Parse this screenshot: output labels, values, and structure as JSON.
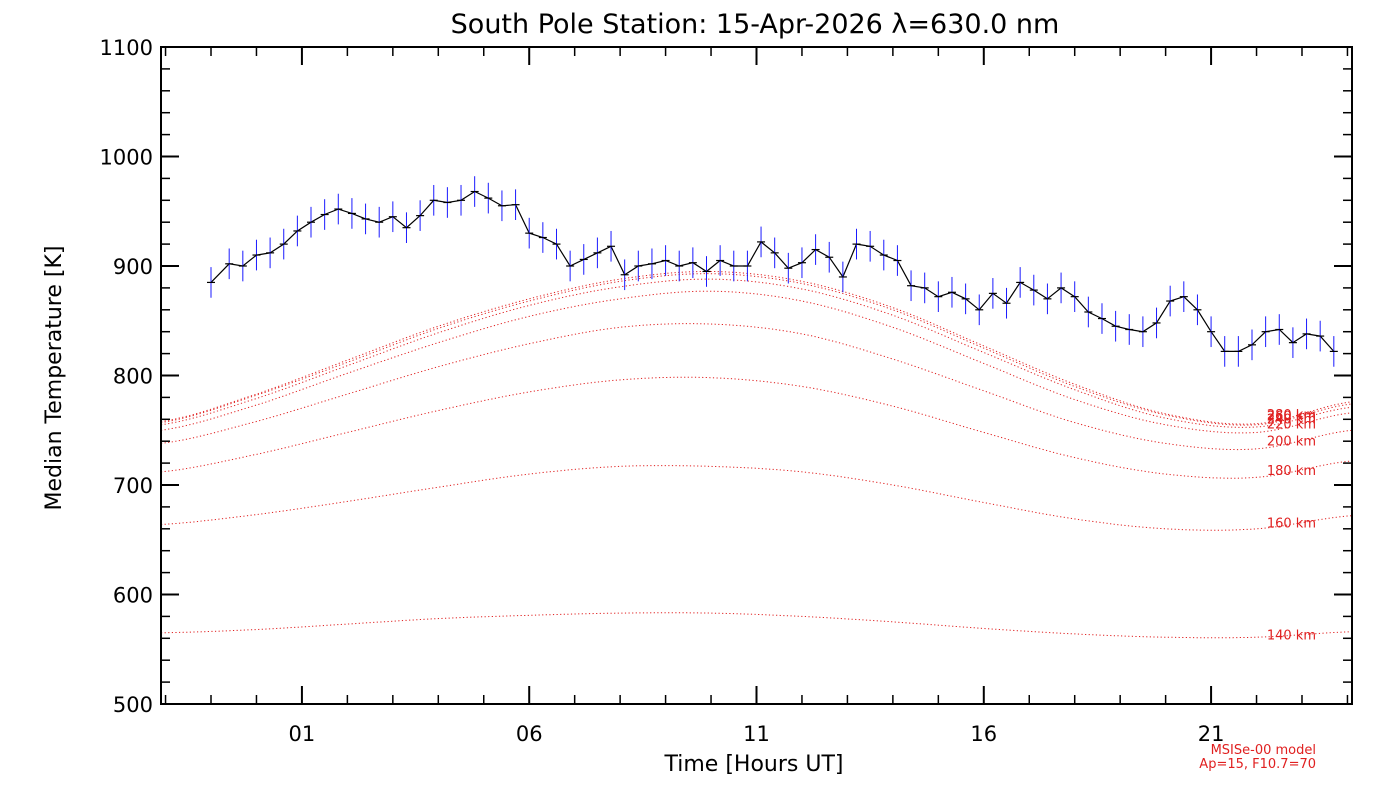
{
  "chart_data": {
    "type": "line",
    "title": "South Pole Station: 15-Apr-2026 λ=630.0 nm",
    "xlabel": "Time [Hours UT]",
    "ylabel": "Median Temperature [K]",
    "xlim": [
      -2.1,
      24.1
    ],
    "ylim": [
      500,
      1100
    ],
    "xticks": [
      {
        "value": 1,
        "label": "01"
      },
      {
        "value": 6,
        "label": "06"
      },
      {
        "value": 11,
        "label": "11"
      },
      {
        "value": 16,
        "label": "16"
      },
      {
        "value": 21,
        "label": "21"
      }
    ],
    "yticks": [
      500,
      600,
      700,
      800,
      900,
      1000,
      1100
    ],
    "grid": false,
    "colors": {
      "observed": "#000000",
      "errorbar": "#1a1aff",
      "model": "#e02020"
    },
    "observed": {
      "name": "Median temperature",
      "x": [
        -1.0,
        -0.6,
        -0.3,
        0.0,
        0.3,
        0.6,
        0.9,
        1.2,
        1.5,
        1.8,
        2.1,
        2.4,
        2.7,
        3.0,
        3.3,
        3.6,
        3.9,
        4.2,
        4.5,
        4.8,
        5.1,
        5.4,
        5.7,
        6.0,
        6.3,
        6.6,
        6.9,
        7.2,
        7.5,
        7.8,
        8.1,
        8.4,
        8.7,
        9.0,
        9.3,
        9.6,
        9.9,
        10.2,
        10.5,
        10.8,
        11.1,
        11.4,
        11.7,
        12.0,
        12.3,
        12.6,
        12.9,
        13.2,
        13.5,
        13.8,
        14.1,
        14.4,
        14.7,
        15.0,
        15.3,
        15.6,
        15.9,
        16.2,
        16.5,
        16.8,
        17.1,
        17.4,
        17.7,
        18.0,
        18.3,
        18.6,
        18.9,
        19.2,
        19.5,
        19.8,
        20.1,
        20.4,
        20.7,
        21.0,
        21.3,
        21.6,
        21.9,
        22.2,
        22.5,
        22.8,
        23.1,
        23.4,
        23.7
      ],
      "values": [
        885,
        902,
        900,
        910,
        912,
        920,
        932,
        940,
        947,
        952,
        948,
        943,
        940,
        945,
        935,
        946,
        960,
        958,
        960,
        968,
        962,
        955,
        956,
        930,
        926,
        920,
        900,
        906,
        912,
        918,
        892,
        900,
        902,
        905,
        900,
        903,
        895,
        905,
        900,
        900,
        922,
        912,
        898,
        903,
        915,
        908,
        890,
        920,
        918,
        910,
        905,
        882,
        880,
        872,
        876,
        870,
        860,
        875,
        866,
        885,
        878,
        870,
        880,
        872,
        858,
        852,
        845,
        842,
        840,
        848,
        868,
        872,
        860,
        840,
        822,
        822,
        828,
        840,
        842,
        830,
        838,
        836,
        822
      ],
      "error_k": 14
    },
    "model": {
      "name": "MSISe-00 model",
      "annotation": [
        "MSISe-00 model",
        "Ap=15, F10.7=70"
      ],
      "curves": [
        {
          "label": "140 km",
          "x": [
            -2.1,
            0,
            2,
            4,
            6,
            8,
            10,
            12,
            14,
            16,
            18,
            20,
            22,
            24.1
          ],
          "values": [
            565,
            568,
            573,
            578,
            581,
            583,
            583,
            580,
            575,
            569,
            564,
            561,
            561,
            566
          ]
        },
        {
          "label": "160 km",
          "x": [
            -2.1,
            0,
            2,
            4,
            6,
            8,
            10,
            12,
            14,
            16,
            18,
            20,
            22,
            24.1
          ],
          "values": [
            664,
            673,
            685,
            698,
            710,
            717,
            717,
            712,
            700,
            684,
            669,
            660,
            660,
            672
          ]
        },
        {
          "label": "180 km",
          "x": [
            -2.1,
            0,
            2,
            4,
            6,
            8,
            10,
            12,
            14,
            16,
            18,
            20,
            22,
            24.1
          ],
          "values": [
            712,
            728,
            748,
            768,
            785,
            796,
            798,
            790,
            772,
            748,
            725,
            710,
            707,
            722
          ]
        },
        {
          "label": "200 km",
          "x": [
            -2.1,
            0,
            2,
            4,
            6,
            8,
            10,
            12,
            14,
            16,
            18,
            20,
            22,
            24.1
          ],
          "values": [
            738,
            758,
            783,
            808,
            829,
            844,
            847,
            838,
            815,
            786,
            757,
            738,
            733,
            750
          ]
        },
        {
          "label": "220 km",
          "x": [
            -2.1,
            0,
            2,
            4,
            6,
            8,
            10,
            12,
            14,
            16,
            18,
            20,
            22,
            24.1
          ],
          "values": [
            750,
            773,
            802,
            830,
            854,
            870,
            877,
            868,
            844,
            811,
            778,
            755,
            748,
            766
          ]
        },
        {
          "label": "240 km",
          "x": [
            -2.1,
            0,
            2,
            4,
            6,
            8,
            10,
            12,
            14,
            16,
            18,
            20,
            22,
            24.1
          ],
          "values": [
            755,
            779,
            809,
            839,
            864,
            881,
            888,
            879,
            855,
            821,
            787,
            761,
            753,
            771
          ]
        },
        {
          "label": "260 km",
          "x": [
            -2.1,
            0,
            2,
            4,
            6,
            8,
            10,
            12,
            14,
            16,
            18,
            20,
            22,
            24.1
          ],
          "values": [
            757,
            782,
            812,
            843,
            868,
            886,
            893,
            884,
            860,
            825,
            790,
            764,
            755,
            774
          ]
        },
        {
          "label": "280 km",
          "x": [
            -2.1,
            0,
            2,
            4,
            6,
            8,
            10,
            12,
            14,
            16,
            18,
            20,
            22,
            24.1
          ],
          "values": [
            758,
            783,
            814,
            845,
            870,
            888,
            895,
            886,
            862,
            827,
            792,
            765,
            756,
            776
          ]
        }
      ]
    }
  }
}
